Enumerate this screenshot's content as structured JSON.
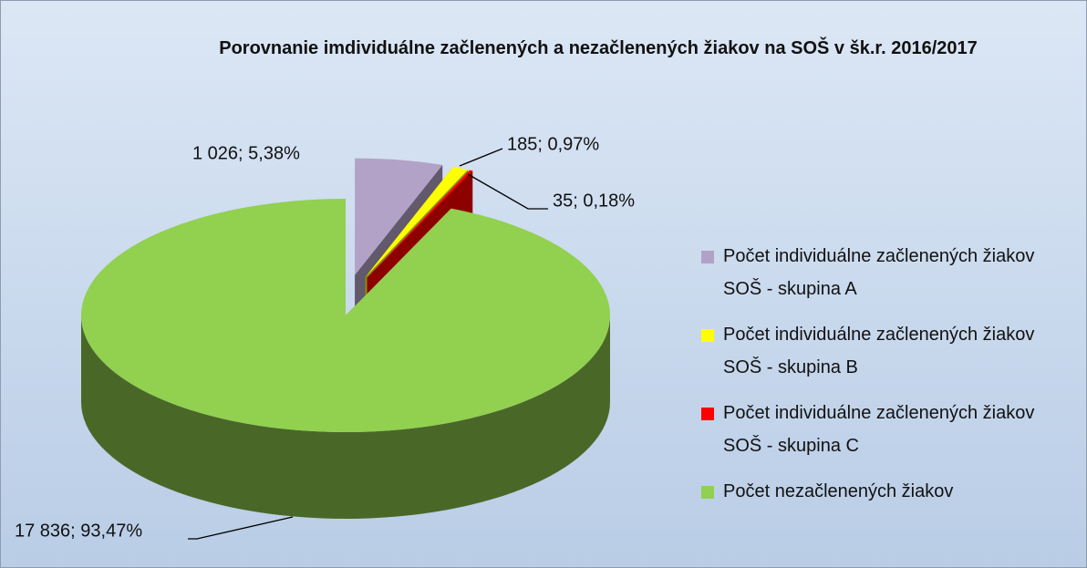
{
  "chart_data": {
    "type": "pie",
    "title": "Porovnanie imdividuálne začlenených a nezačlenených žiakov na SOŠ v šk.r. 2016/2017",
    "categories": [
      "Počet individuálne začlenených žiakov SOŠ - skupina A",
      "Počet individuálne začlenených žiakov SOŠ - skupina B",
      "Počet individuálne začlenených žiakov SOŠ - skupina C",
      "Počet nezačlenených žiakov"
    ],
    "values": [
      1026,
      185,
      35,
      17836
    ],
    "value_labels": [
      "1 026; 5,38%",
      "185; 0,97%",
      "35; 0,18%",
      "17 836; 93,47%"
    ],
    "colors": [
      "#b3a2c7",
      "#ffff00",
      "#ff0000",
      "#92d050"
    ],
    "legend": "right"
  }
}
